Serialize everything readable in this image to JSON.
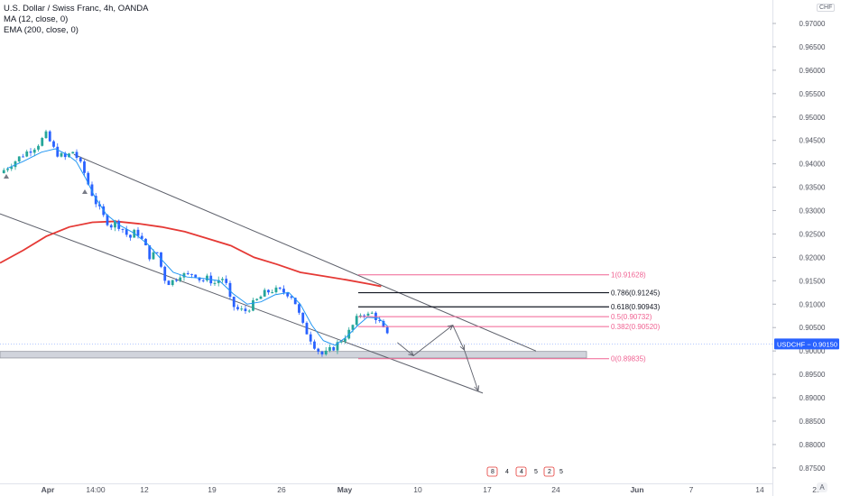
{
  "legend": {
    "title": "U.S. Dollar / Swiss Franc, 4h, OANDA",
    "ma": "MA (12, close, 0)",
    "ema": "EMA (200, close, 0)"
  },
  "currency_label": "CHF",
  "auto_label": "A",
  "symbol_label": "USDCHF",
  "price_label": "0.90150",
  "colors": {
    "up": "#26a69a",
    "down": "#2962ff",
    "ma": "#2196f3",
    "ema": "#e53935",
    "fib_red": "#f06292",
    "fib_black": "#131722",
    "channel": "#5d606b",
    "price_line": "#2962ff"
  },
  "chart_data": {
    "type": "candlestick",
    "instrument": "U.S. Dollar / Swiss Franc",
    "timeframe": "4h",
    "source": "OANDA",
    "x_ticks": [
      "Apr",
      "14:00",
      "12",
      "19",
      "26",
      "May",
      "10",
      "17",
      "24",
      "Jun",
      "7",
      "14",
      "21"
    ],
    "y_ticks": [
      "0.97000",
      "0.96500",
      "0.96000",
      "0.95500",
      "0.95000",
      "0.94500",
      "0.94000",
      "0.93500",
      "0.93000",
      "0.92500",
      "0.92000",
      "0.91500",
      "0.91000",
      "0.90500",
      "0.90000",
      "0.89500",
      "0.89000",
      "0.88500",
      "0.88000",
      "0.87500"
    ],
    "ylim": [
      0.8738,
      0.9728
    ],
    "last_price": 0.9015,
    "close_path": [
      [
        0.0,
        0.938
      ],
      [
        0.5,
        0.94
      ],
      [
        1.0,
        0.942
      ],
      [
        1.6,
        0.944
      ],
      [
        2.0,
        0.9462
      ],
      [
        2.4,
        0.9425
      ],
      [
        2.8,
        0.9412
      ],
      [
        3.2,
        0.9428
      ],
      [
        3.4,
        0.9405
      ],
      [
        3.6,
        0.9388
      ],
      [
        3.9,
        0.9345
      ],
      [
        4.2,
        0.9312
      ],
      [
        4.5,
        0.9285
      ],
      [
        4.8,
        0.9268
      ],
      [
        5.0,
        0.9275
      ],
      [
        5.3,
        0.9262
      ],
      [
        5.6,
        0.924
      ],
      [
        5.9,
        0.9258
      ],
      [
        6.2,
        0.9232
      ],
      [
        6.5,
        0.92
      ],
      [
        6.8,
        0.9212
      ],
      [
        7.0,
        0.9175
      ],
      [
        7.2,
        0.9145
      ],
      [
        7.5,
        0.915
      ],
      [
        7.8,
        0.9165
      ],
      [
        8.1,
        0.916
      ],
      [
        8.4,
        0.9168
      ],
      [
        8.7,
        0.915
      ],
      [
        9.0,
        0.9155
      ],
      [
        9.3,
        0.9145
      ],
      [
        9.6,
        0.9158
      ],
      [
        9.8,
        0.914
      ],
      [
        10.0,
        0.91
      ],
      [
        10.3,
        0.9088
      ],
      [
        10.6,
        0.9085
      ],
      [
        10.9,
        0.9098
      ],
      [
        11.2,
        0.9112
      ],
      [
        11.5,
        0.9125
      ],
      [
        11.8,
        0.913
      ],
      [
        12.1,
        0.9128
      ],
      [
        12.4,
        0.9125
      ],
      [
        12.7,
        0.9115
      ],
      [
        12.9,
        0.9085
      ],
      [
        13.1,
        0.9055
      ],
      [
        13.4,
        0.903
      ],
      [
        13.7,
        0.9005
      ],
      [
        14.0,
        0.899
      ],
      [
        14.2,
        0.8998
      ],
      [
        14.5,
        0.901
      ],
      [
        14.8,
        0.9025
      ],
      [
        15.1,
        0.904
      ],
      [
        15.4,
        0.9065
      ],
      [
        15.7,
        0.9085
      ],
      [
        15.9,
        0.9075
      ],
      [
        16.1,
        0.908
      ],
      [
        16.3,
        0.907
      ],
      [
        16.5,
        0.9055
      ],
      [
        16.7,
        0.9035
      ],
      [
        16.9,
        0.9025
      ]
    ],
    "ema200_path": [
      [
        0.0,
        0.9188
      ],
      [
        1.0,
        0.9215
      ],
      [
        2.0,
        0.9245
      ],
      [
        3.0,
        0.9265
      ],
      [
        4.0,
        0.9275
      ],
      [
        5.0,
        0.9277
      ],
      [
        6.0,
        0.9272
      ],
      [
        7.0,
        0.9265
      ],
      [
        8.0,
        0.9255
      ],
      [
        9.0,
        0.924
      ],
      [
        10.0,
        0.9225
      ],
      [
        11.0,
        0.92
      ],
      [
        12.0,
        0.9185
      ],
      [
        13.0,
        0.9168
      ],
      [
        14.0,
        0.916
      ],
      [
        15.0,
        0.9152
      ],
      [
        16.0,
        0.9143
      ],
      [
        16.5,
        0.9138
      ]
    ],
    "ma12_path": [
      [
        0.3,
        0.939
      ],
      [
        1.0,
        0.9405
      ],
      [
        1.8,
        0.9425
      ],
      [
        2.4,
        0.9432
      ],
      [
        2.9,
        0.942
      ],
      [
        3.3,
        0.9405
      ],
      [
        3.7,
        0.937
      ],
      [
        4.1,
        0.933
      ],
      [
        4.6,
        0.9292
      ],
      [
        5.2,
        0.9268
      ],
      [
        5.8,
        0.9252
      ],
      [
        6.4,
        0.9228
      ],
      [
        7.0,
        0.9195
      ],
      [
        7.5,
        0.9168
      ],
      [
        8.1,
        0.9158
      ],
      [
        8.8,
        0.9155
      ],
      [
        9.5,
        0.915
      ],
      [
        10.1,
        0.9122
      ],
      [
        10.7,
        0.91
      ],
      [
        11.3,
        0.9105
      ],
      [
        11.9,
        0.912
      ],
      [
        12.5,
        0.9125
      ],
      [
        13.0,
        0.91
      ],
      [
        13.5,
        0.9055
      ],
      [
        14.0,
        0.9022
      ],
      [
        14.5,
        0.9012
      ],
      [
        15.0,
        0.903
      ],
      [
        15.5,
        0.9055
      ],
      [
        15.9,
        0.9072
      ],
      [
        16.4,
        0.907
      ],
      [
        16.8,
        0.9052
      ]
    ],
    "channel_lines": [
      {
        "from": [
          0.0,
          0.9293
        ],
        "to": [
          20.9,
          0.891
        ]
      },
      {
        "from": [
          3.2,
          0.942
        ],
        "to": [
          23.2,
          0.9
        ]
      }
    ],
    "fibonacci": [
      {
        "label": "1(0.91628)",
        "value": 0.91628
      },
      {
        "label": "0.786(0.91245)",
        "value": 0.91245
      },
      {
        "label": "0.618(0.90943)",
        "value": 0.90943
      },
      {
        "label": "0.5(0.90732)",
        "value": 0.90732
      },
      {
        "label": "0.382(0.90520)",
        "value": 0.9052
      },
      {
        "label": "0(0.89835)",
        "value": 0.89835
      }
    ],
    "support_zone": [
      0.8985,
      0.8999
    ],
    "projection": [
      [
        17.2,
        0.9018
      ],
      [
        17.9,
        0.899
      ],
      [
        19.6,
        0.9055
      ],
      [
        20.1,
        0.9002
      ],
      [
        20.7,
        0.8915
      ]
    ],
    "event_markers": [
      "8",
      "4",
      "4",
      "5",
      "2",
      "5"
    ]
  }
}
